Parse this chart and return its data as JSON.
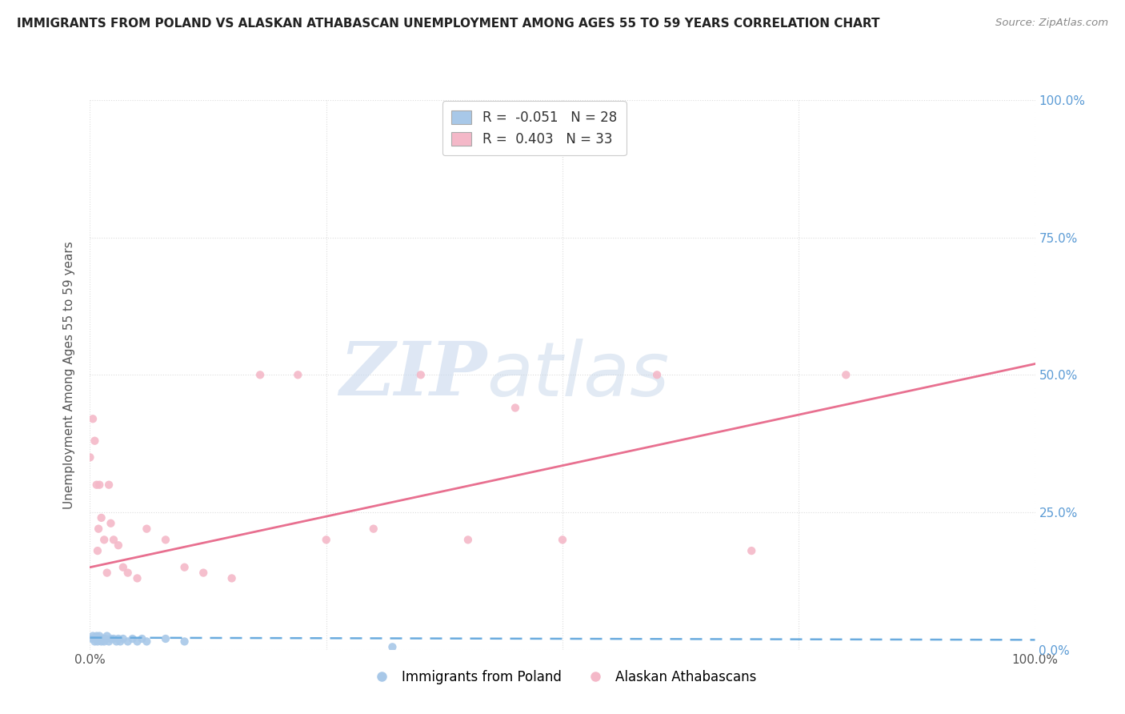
{
  "title": "IMMIGRANTS FROM POLAND VS ALASKAN ATHABASCAN UNEMPLOYMENT AMONG AGES 55 TO 59 YEARS CORRELATION CHART",
  "source": "Source: ZipAtlas.com",
  "ylabel": "Unemployment Among Ages 55 to 59 years",
  "xlim": [
    0.0,
    1.0
  ],
  "ylim": [
    0.0,
    1.0
  ],
  "xtick_vals": [
    0.0,
    0.25,
    0.5,
    0.75,
    1.0
  ],
  "xtick_labels": [
    "0.0%",
    "",
    "",
    "",
    "100.0%"
  ],
  "ytick_vals": [
    0.0,
    0.25,
    0.5,
    0.75,
    1.0
  ],
  "ytick_labels": [
    "",
    "",
    "",
    "",
    ""
  ],
  "right_ytick_vals": [
    0.0,
    0.25,
    0.5,
    0.75,
    1.0
  ],
  "right_ytick_labels": [
    "0.0%",
    "25.0%",
    "50.0%",
    "75.0%",
    "100.0%"
  ],
  "blue_scatter_x": [
    0.002,
    0.003,
    0.005,
    0.006,
    0.007,
    0.008,
    0.009,
    0.01,
    0.012,
    0.013,
    0.015,
    0.016,
    0.018,
    0.02,
    0.022,
    0.025,
    0.028,
    0.03,
    0.032,
    0.035,
    0.04,
    0.045,
    0.05,
    0.055,
    0.06,
    0.08,
    0.1,
    0.32
  ],
  "blue_scatter_y": [
    0.02,
    0.025,
    0.015,
    0.02,
    0.025,
    0.015,
    0.02,
    0.025,
    0.015,
    0.02,
    0.015,
    0.02,
    0.025,
    0.015,
    0.02,
    0.02,
    0.015,
    0.02,
    0.015,
    0.02,
    0.015,
    0.02,
    0.015,
    0.02,
    0.015,
    0.02,
    0.015,
    0.005
  ],
  "pink_scatter_x": [
    0.0,
    0.003,
    0.005,
    0.007,
    0.008,
    0.009,
    0.01,
    0.012,
    0.015,
    0.018,
    0.02,
    0.022,
    0.025,
    0.03,
    0.035,
    0.04,
    0.05,
    0.06,
    0.08,
    0.1,
    0.12,
    0.15,
    0.18,
    0.22,
    0.25,
    0.3,
    0.35,
    0.4,
    0.45,
    0.5,
    0.6,
    0.7,
    0.8
  ],
  "pink_scatter_y": [
    0.35,
    0.42,
    0.38,
    0.3,
    0.18,
    0.22,
    0.3,
    0.24,
    0.2,
    0.14,
    0.3,
    0.23,
    0.2,
    0.19,
    0.15,
    0.14,
    0.13,
    0.22,
    0.2,
    0.15,
    0.14,
    0.13,
    0.5,
    0.5,
    0.2,
    0.22,
    0.5,
    0.2,
    0.44,
    0.2,
    0.5,
    0.18,
    0.5
  ],
  "blue_line_x": [
    0.0,
    1.0
  ],
  "blue_line_y": [
    0.022,
    0.018
  ],
  "pink_line_x": [
    0.0,
    1.0
  ],
  "pink_line_y": [
    0.15,
    0.52
  ],
  "blue_scatter_color": "#a8c8e8",
  "pink_scatter_color": "#f4b8c8",
  "blue_line_color": "#6aabde",
  "pink_line_color": "#e87090",
  "right_axis_color": "#5b9bd5",
  "legend_blue_R": "-0.051",
  "legend_blue_N": "28",
  "legend_pink_R": "0.403",
  "legend_pink_N": "33",
  "watermark_zip": "ZIP",
  "watermark_atlas": "atlas",
  "background_color": "#ffffff",
  "grid_color": "#dddddd",
  "title_color": "#222222",
  "source_color": "#888888",
  "ylabel_color": "#555555",
  "legend_r_blue_color": "#5b9bd5",
  "legend_r_pink_color": "#e87090"
}
